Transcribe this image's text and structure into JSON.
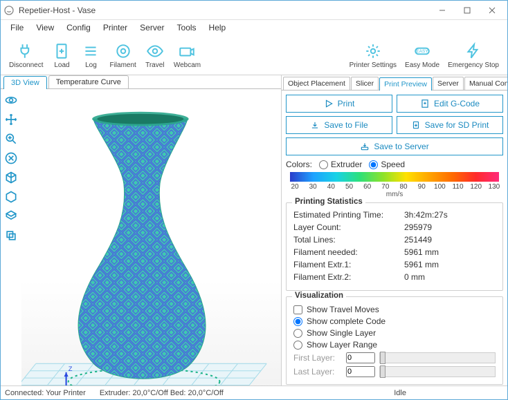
{
  "window": {
    "title": "Repetier-Host - Vase"
  },
  "menu": [
    "File",
    "View",
    "Config",
    "Printer",
    "Server",
    "Tools",
    "Help"
  ],
  "toolbar_left": [
    {
      "name": "disconnect",
      "label": "Disconnect",
      "icon": "plug"
    },
    {
      "name": "load",
      "label": "Load",
      "icon": "plus-doc"
    },
    {
      "name": "log",
      "label": "Log",
      "icon": "list"
    },
    {
      "name": "filament",
      "label": "Filament",
      "icon": "spool"
    },
    {
      "name": "travel",
      "label": "Travel",
      "icon": "eye"
    },
    {
      "name": "webcam",
      "label": "Webcam",
      "icon": "camera"
    }
  ],
  "toolbar_right": [
    {
      "name": "printer-settings",
      "label": "Printer Settings",
      "icon": "gear"
    },
    {
      "name": "easy-mode",
      "label": "Easy Mode",
      "icon": "easy"
    },
    {
      "name": "emergency-stop",
      "label": "Emergency Stop",
      "icon": "bolt"
    }
  ],
  "left_tabs": [
    {
      "name": "3d-view",
      "label": "3D View",
      "active": true
    },
    {
      "name": "temperature-curve",
      "label": "Temperature Curve",
      "active": false
    }
  ],
  "right_tabs": [
    {
      "name": "object-placement",
      "label": "Object Placement",
      "active": false
    },
    {
      "name": "slicer",
      "label": "Slicer",
      "active": false
    },
    {
      "name": "print-preview",
      "label": "Print Preview",
      "active": true
    },
    {
      "name": "server",
      "label": "Server",
      "active": false
    },
    {
      "name": "manual-control",
      "label": "Manual Control",
      "active": false
    }
  ],
  "actions": {
    "print": "Print",
    "edit_gcode": "Edit G-Code",
    "save_file": "Save to File",
    "save_sd": "Save for SD Print",
    "save_server": "Save to Server"
  },
  "colors": {
    "label": "Colors:",
    "mode_extruder": "Extruder",
    "mode_speed": "Speed",
    "selected": "speed",
    "ticks": [
      "20",
      "30",
      "40",
      "50",
      "60",
      "70",
      "80",
      "90",
      "100",
      "110",
      "120",
      "130"
    ],
    "unit": "mm/s",
    "stops": [
      "#2a3dca",
      "#1ea1ff",
      "#19d2e6",
      "#2de07a",
      "#8ce22a",
      "#ffe100",
      "#ffa400",
      "#ff6a00",
      "#ff2a2a",
      "#ff2a7a"
    ]
  },
  "stats": {
    "title": "Printing Statistics",
    "rows": [
      {
        "k": "Estimated Printing Time:",
        "v": "3h:42m:27s"
      },
      {
        "k": "Layer Count:",
        "v": "295979"
      },
      {
        "k": "Total Lines:",
        "v": "251449"
      },
      {
        "k": "Filament needed:",
        "v": "5961 mm"
      },
      {
        "k": "Filament Extr.1:",
        "v": "5961 mm"
      },
      {
        "k": "Filament Extr.2:",
        "v": "0 mm"
      }
    ]
  },
  "vis": {
    "title": "Visualization",
    "show_travel": "Show Travel Moves",
    "show_complete": "Show complete Code",
    "show_single": "Show Single Layer",
    "show_range": "Show Layer Range",
    "first_layer_label": "First Layer:",
    "last_layer_label": "Last Layer:",
    "first_layer": 0,
    "last_layer": 0
  },
  "status": {
    "connected": "Connected: Your Printer",
    "extruder": "Extruder: 20,0°C/Off Bed: 20,0°C/Off",
    "idle": "Idle"
  },
  "vase": {
    "fill": "#3fc9b0",
    "pattern": "#4a63e0",
    "grid": "#9fd9e8"
  }
}
